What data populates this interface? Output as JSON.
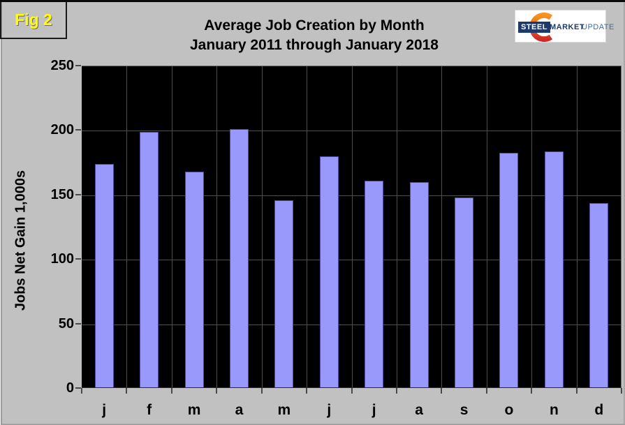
{
  "fig_label": "Fig 2",
  "logo": {
    "steel": "STEEL",
    "market": "MARKET",
    "update": "UPDATE",
    "arc_icon": "orange-crescent-icon",
    "navy": "#1c3a6b",
    "blue": "#3c6ea5",
    "orange_top": "#f7941d",
    "orange_bottom": "#cf2a27"
  },
  "chart_data": {
    "type": "bar",
    "title": "Average Job Creation by Month",
    "subtitle": "January 2011 through January 2018",
    "ylabel": "Jobs Net Gain 1,000s",
    "xlabel": "",
    "categories": [
      "j",
      "f",
      "m",
      "a",
      "m",
      "j",
      "j",
      "a",
      "s",
      "o",
      "n",
      "d"
    ],
    "values": [
      173,
      198,
      167,
      200,
      145,
      179,
      160,
      159,
      147,
      182,
      183,
      143
    ],
    "ylim": [
      0,
      250
    ],
    "yticks": [
      0,
      50,
      100,
      150,
      200,
      250
    ],
    "grid": true,
    "legend": false,
    "colors": {
      "page_bg": "#c1c1c1",
      "plot_bg": "#000000",
      "bar_fill": "#9999fc",
      "bar_border": "#4c4ca0",
      "gridline": "#4f4f4f",
      "fig_label_color": "#ffff00"
    }
  }
}
